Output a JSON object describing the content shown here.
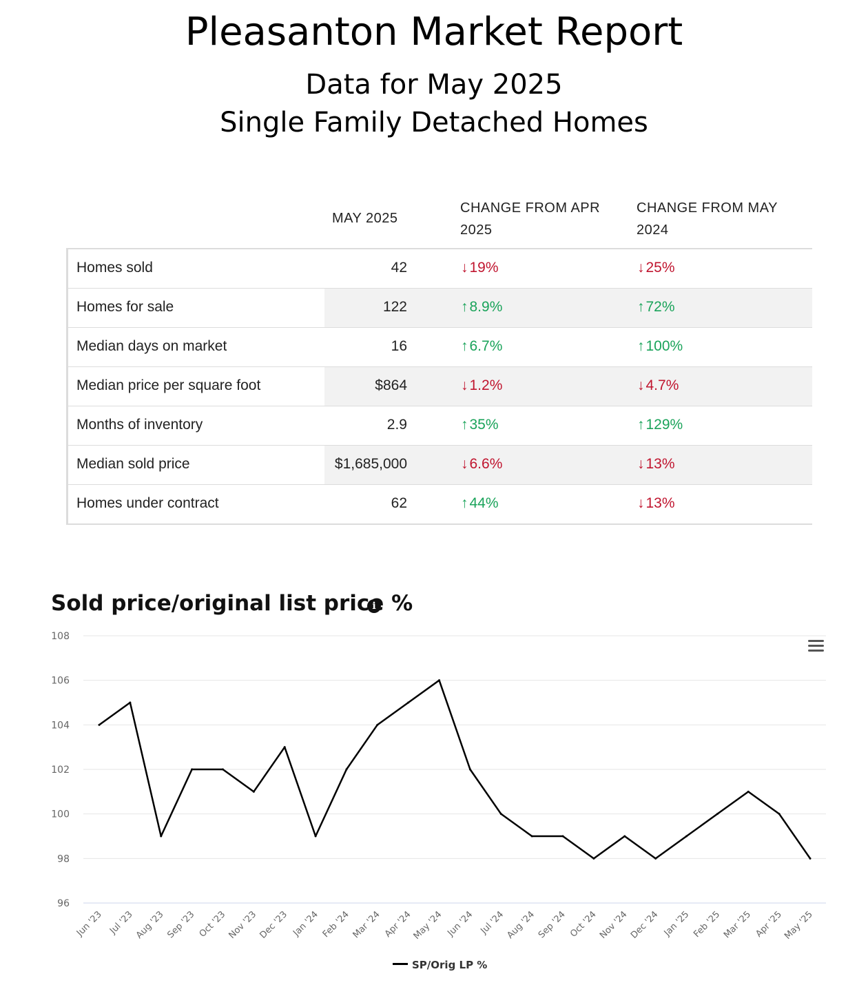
{
  "header": {
    "title": "Pleasanton Market Report",
    "subtitle1": "Data for May 2025",
    "subtitle2": "Single Family Detached Homes"
  },
  "colors": {
    "up": "#1aa35a",
    "down": "#c0152f",
    "line": "#000000"
  },
  "table": {
    "columns": {
      "current": "MAY 2025",
      "change_prev_line1": "CHANGE FROM APR",
      "change_prev_line2": "2025",
      "change_year_line1": "CHANGE FROM MAY",
      "change_year_line2": "2024"
    },
    "rows": [
      {
        "label": "Homes sold",
        "value": "42",
        "chg1": "19%",
        "dir1": "down",
        "chg2": "25%",
        "dir2": "down"
      },
      {
        "label": "Homes for sale",
        "value": "122",
        "chg1": "8.9%",
        "dir1": "up",
        "chg2": "72%",
        "dir2": "up"
      },
      {
        "label": "Median days on market",
        "value": "16",
        "chg1": "6.7%",
        "dir1": "up",
        "chg2": "100%",
        "dir2": "up"
      },
      {
        "label": "Median price per square foot",
        "value": "$864",
        "chg1": "1.2%",
        "dir1": "down",
        "chg2": "4.7%",
        "dir2": "down"
      },
      {
        "label": "Months of inventory",
        "value": "2.9",
        "chg1": "35%",
        "dir1": "up",
        "chg2": "129%",
        "dir2": "up"
      },
      {
        "label": "Median sold price",
        "value": "$1,685,000",
        "chg1": "6.6%",
        "dir1": "down",
        "chg2": "13%",
        "dir2": "down"
      },
      {
        "label": "Homes under contract",
        "value": "62",
        "chg1": "44%",
        "dir1": "up",
        "chg2": "13%",
        "dir2": "down"
      }
    ]
  },
  "chart": {
    "title": "Sold price/original list price %",
    "info_icon": "info-icon",
    "menu_icon": "hamburger-menu-icon"
  },
  "chart_data": {
    "type": "line",
    "title": "Sold price/original list price %",
    "categories": [
      "Jun '23",
      "Jul '23",
      "Aug '23",
      "Sep '23",
      "Oct '23",
      "Nov '23",
      "Dec '23",
      "Jan '24",
      "Feb '24",
      "Mar '24",
      "Apr '24",
      "May '24",
      "Jun '24",
      "Jul '24",
      "Aug '24",
      "Sep '24",
      "Oct '24",
      "Nov '24",
      "Dec '24",
      "Jan '25",
      "Feb '25",
      "Mar '25",
      "Apr '25",
      "May '25"
    ],
    "series": [
      {
        "name": "SP/Orig LP %",
        "values": [
          104,
          105,
          99,
          102,
          102,
          101,
          103,
          99,
          102,
          104,
          105,
          106,
          102,
          100,
          99,
          99,
          98,
          99,
          98,
          99,
          100,
          101,
          100,
          98
        ]
      }
    ],
    "ylim": [
      96,
      108
    ],
    "yticks": [
      96,
      98,
      100,
      102,
      104,
      106,
      108
    ],
    "grid": true,
    "legend": "bottom-center"
  }
}
